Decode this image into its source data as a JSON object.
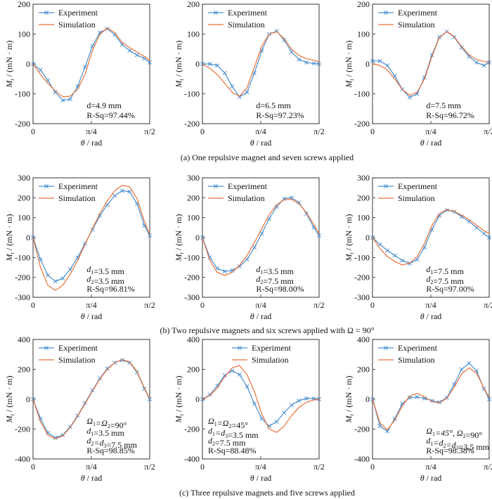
{
  "colors": {
    "experiment": "#4a8fd0",
    "simulation": "#e8703a",
    "axes": "#222222"
  },
  "captions": [
    "(a) One repulsive magnet and seven screws applied",
    "(b) Two repulsive magnets and six screws applied with Ω = 90°",
    "(c) Three repulsive magnets and five screws applied"
  ],
  "chart_data": [
    {
      "type": "line",
      "row": 0,
      "col": 0,
      "xlabel": "θ / rad",
      "ylabel": "Mt / (mN · m)",
      "xlim": [
        0,
        1.5708
      ],
      "ylim": [
        -200,
        200
      ],
      "yticks": [
        -200,
        -100,
        0,
        100,
        200
      ],
      "xticks": [
        "0",
        "π/4",
        "π/2"
      ],
      "legend": [
        "Experiment",
        "Simulation"
      ],
      "legend_position": "top-left",
      "annotation": [
        "d=4.9 mm",
        "R-Sq=97.44%"
      ],
      "annotation_position": "bottom-middle",
      "series": [
        {
          "name": "Experiment",
          "marker": "x",
          "x": [
            0,
            0.1,
            0.2,
            0.3,
            0.4,
            0.5,
            0.6,
            0.7,
            0.8,
            0.9,
            1.0,
            1.1,
            1.2,
            1.3,
            1.4,
            1.5,
            1.5708
          ],
          "y": [
            0,
            -20,
            -55,
            -95,
            -122,
            -118,
            -75,
            -10,
            60,
            105,
            118,
            98,
            65,
            45,
            30,
            18,
            5
          ]
        },
        {
          "name": "Simulation",
          "x": [
            0,
            0.1,
            0.2,
            0.3,
            0.4,
            0.5,
            0.6,
            0.7,
            0.8,
            0.9,
            1.0,
            1.1,
            1.2,
            1.3,
            1.4,
            1.5,
            1.5708
          ],
          "y": [
            0,
            -35,
            -65,
            -90,
            -110,
            -108,
            -85,
            -35,
            45,
            100,
            120,
            105,
            72,
            55,
            40,
            25,
            12
          ]
        }
      ]
    },
    {
      "type": "line",
      "row": 0,
      "col": 1,
      "xlabel": "θ / rad",
      "ylabel": "Mt / (mN · m)",
      "xlim": [
        0,
        1.5708
      ],
      "ylim": [
        -200,
        200
      ],
      "yticks": [
        -200,
        -100,
        0,
        100,
        200
      ],
      "xticks": [
        "0",
        "π/4",
        "π/2"
      ],
      "legend": [
        "Experiment",
        "Simulation"
      ],
      "legend_position": "top-left",
      "annotation": [
        "d=6.5 mm",
        "R-Sq=97.23%"
      ],
      "annotation_position": "bottom-middle",
      "series": [
        {
          "name": "Experiment",
          "marker": "x",
          "x": [
            0,
            0.1,
            0.2,
            0.3,
            0.4,
            0.5,
            0.6,
            0.7,
            0.8,
            0.9,
            1.0,
            1.1,
            1.2,
            1.3,
            1.4,
            1.5,
            1.5708
          ],
          "y": [
            0,
            0,
            -5,
            -30,
            -75,
            -110,
            -95,
            -30,
            45,
            100,
            110,
            80,
            40,
            15,
            5,
            2,
            0
          ]
        },
        {
          "name": "Simulation",
          "x": [
            0,
            0.1,
            0.2,
            0.3,
            0.4,
            0.5,
            0.6,
            0.7,
            0.8,
            0.9,
            1.0,
            1.1,
            1.2,
            1.3,
            1.4,
            1.5,
            1.5708
          ],
          "y": [
            0,
            -15,
            -35,
            -65,
            -95,
            -108,
            -80,
            -10,
            60,
            100,
            108,
            85,
            50,
            28,
            18,
            12,
            8
          ]
        }
      ]
    },
    {
      "type": "line",
      "row": 0,
      "col": 2,
      "xlabel": "θ / rad",
      "ylabel": "Mt / (mN · m)",
      "xlim": [
        0,
        1.5708
      ],
      "ylim": [
        -200,
        200
      ],
      "yticks": [
        -200,
        -100,
        0,
        100,
        200
      ],
      "xticks": [
        "0",
        "π/4",
        "π/2"
      ],
      "legend": [
        "Experiment",
        "Simulation"
      ],
      "legend_position": "top-left",
      "annotation": [
        "d=7.5 mm",
        "R-Sq=96.72%"
      ],
      "annotation_position": "bottom-middle",
      "series": [
        {
          "name": "Experiment",
          "marker": "x",
          "x": [
            0,
            0.1,
            0.2,
            0.3,
            0.4,
            0.5,
            0.6,
            0.7,
            0.8,
            0.9,
            1.0,
            1.1,
            1.2,
            1.3,
            1.4,
            1.5,
            1.5708
          ],
          "y": [
            10,
            10,
            -5,
            -40,
            -85,
            -112,
            -100,
            -45,
            30,
            90,
            108,
            90,
            55,
            25,
            5,
            -5,
            5
          ]
        },
        {
          "name": "Simulation",
          "x": [
            0,
            0.1,
            0.2,
            0.3,
            0.4,
            0.5,
            0.6,
            0.7,
            0.8,
            0.9,
            1.0,
            1.1,
            1.2,
            1.3,
            1.4,
            1.5,
            1.5708
          ],
          "y": [
            0,
            -5,
            -20,
            -50,
            -85,
            -105,
            -95,
            -50,
            25,
            88,
            108,
            92,
            58,
            30,
            15,
            8,
            5
          ]
        }
      ]
    },
    {
      "type": "line",
      "row": 1,
      "col": 0,
      "xlabel": "θ / rad",
      "ylabel": "Mt / (mN · m)",
      "xlim": [
        0,
        1.5708
      ],
      "ylim": [
        -300,
        300
      ],
      "yticks": [
        -300,
        -200,
        -100,
        0,
        100,
        200,
        300
      ],
      "xticks": [
        "0",
        "π/4",
        "π/2"
      ],
      "legend": [
        "Experiment",
        "Simulation"
      ],
      "legend_position": "top-left",
      "annotation": [
        "d1=3.5 mm",
        "d2=3.5 mm",
        "R-Sq=96.81%"
      ],
      "annotation_position": "bottom-middle",
      "series": [
        {
          "name": "Experiment",
          "marker": "x",
          "x": [
            0,
            0.1,
            0.2,
            0.3,
            0.4,
            0.5,
            0.6,
            0.7,
            0.8,
            0.9,
            1.0,
            1.1,
            1.2,
            1.3,
            1.4,
            1.5,
            1.5708
          ],
          "y": [
            0,
            -110,
            -190,
            -220,
            -205,
            -160,
            -100,
            -30,
            40,
            110,
            165,
            210,
            235,
            230,
            170,
            60,
            10
          ]
        },
        {
          "name": "Simulation",
          "x": [
            0,
            0.1,
            0.2,
            0.3,
            0.4,
            0.5,
            0.6,
            0.7,
            0.8,
            0.9,
            1.0,
            1.1,
            1.2,
            1.3,
            1.4,
            1.5,
            1.5708
          ],
          "y": [
            0,
            -150,
            -240,
            -265,
            -240,
            -185,
            -115,
            -35,
            45,
            120,
            185,
            235,
            262,
            255,
            195,
            80,
            15
          ]
        }
      ]
    },
    {
      "type": "line",
      "row": 1,
      "col": 1,
      "xlabel": "θ / rad",
      "ylabel": "Mt / (mN · m)",
      "xlim": [
        0,
        1.5708
      ],
      "ylim": [
        -300,
        300
      ],
      "yticks": [
        -300,
        -200,
        -100,
        0,
        100,
        200,
        300
      ],
      "xticks": [
        "0",
        "π/4",
        "π/2"
      ],
      "legend": [
        "Experiment",
        "Simulation"
      ],
      "legend_position": "top-left",
      "annotation": [
        "d1=3.5 mm",
        "d2=7.5 mm",
        "R-Sq=98.00%"
      ],
      "annotation_position": "bottom-middle",
      "series": [
        {
          "name": "Experiment",
          "marker": "x",
          "x": [
            0,
            0.1,
            0.2,
            0.3,
            0.4,
            0.5,
            0.6,
            0.7,
            0.8,
            0.9,
            1.0,
            1.1,
            1.2,
            1.3,
            1.4,
            1.5,
            1.5708
          ],
          "y": [
            0,
            -100,
            -155,
            -170,
            -165,
            -145,
            -110,
            -50,
            20,
            95,
            155,
            195,
            200,
            175,
            120,
            50,
            10
          ]
        },
        {
          "name": "Simulation",
          "x": [
            0,
            0.1,
            0.2,
            0.3,
            0.4,
            0.5,
            0.6,
            0.7,
            0.8,
            0.9,
            1.0,
            1.1,
            1.2,
            1.3,
            1.4,
            1.5,
            1.5708
          ],
          "y": [
            0,
            -115,
            -175,
            -190,
            -175,
            -140,
            -90,
            -25,
            45,
            115,
            165,
            190,
            192,
            170,
            125,
            65,
            20
          ]
        }
      ]
    },
    {
      "type": "line",
      "row": 1,
      "col": 2,
      "xlabel": "θ / rad",
      "ylabel": "Mt / (mN · m)",
      "xlim": [
        0,
        1.5708
      ],
      "ylim": [
        -300,
        300
      ],
      "yticks": [
        -300,
        -200,
        -100,
        0,
        100,
        200,
        300
      ],
      "xticks": [
        "0",
        "π/4",
        "π/2"
      ],
      "legend": [
        "Experiment",
        "Simulation"
      ],
      "legend_position": "top-left",
      "annotation": [
        "d1=7.5 mm",
        "d2=7.5 mm",
        "R-Sq=97.00%"
      ],
      "annotation_position": "bottom-middle",
      "series": [
        {
          "name": "Experiment",
          "marker": "x",
          "x": [
            0,
            0.1,
            0.2,
            0.3,
            0.4,
            0.5,
            0.6,
            0.7,
            0.8,
            0.9,
            1.0,
            1.1,
            1.2,
            1.3,
            1.4,
            1.5,
            1.5708
          ],
          "y": [
            0,
            -35,
            -65,
            -90,
            -115,
            -130,
            -110,
            -50,
            40,
            110,
            138,
            130,
            105,
            80,
            50,
            20,
            0
          ]
        },
        {
          "name": "Simulation",
          "x": [
            0,
            0.1,
            0.2,
            0.3,
            0.4,
            0.5,
            0.6,
            0.7,
            0.8,
            0.9,
            1.0,
            1.1,
            1.2,
            1.3,
            1.4,
            1.5,
            1.5708
          ],
          "y": [
            0,
            -55,
            -95,
            -120,
            -138,
            -128,
            -95,
            -30,
            60,
            120,
            140,
            132,
            112,
            90,
            62,
            35,
            20
          ]
        }
      ]
    },
    {
      "type": "line",
      "row": 2,
      "col": 0,
      "xlabel": "θ / rad",
      "ylabel": "Mt / (mN · m)",
      "xlim": [
        0,
        1.5708
      ],
      "ylim": [
        -400,
        400
      ],
      "yticks": [
        -400,
        -200,
        0,
        200,
        400
      ],
      "xticks": [
        "0",
        "π/4",
        "π/2"
      ],
      "legend": [
        "Experiment",
        "Simulation"
      ],
      "legend_position": "top-left",
      "annotation": [
        "Ω1=Ω2=90°",
        "d1=3.5 mm",
        "d2=d3=7.5 mm",
        "R-Sq=98.85%"
      ],
      "annotation_position": "bottom-middle",
      "series": [
        {
          "name": "Experiment",
          "marker": "x",
          "x": [
            0,
            0.1,
            0.2,
            0.3,
            0.4,
            0.5,
            0.6,
            0.7,
            0.8,
            0.9,
            1.0,
            1.1,
            1.2,
            1.3,
            1.4,
            1.5,
            1.5708
          ],
          "y": [
            0,
            -130,
            -225,
            -258,
            -240,
            -185,
            -110,
            -25,
            60,
            140,
            205,
            245,
            262,
            245,
            180,
            70,
            0
          ]
        },
        {
          "name": "Simulation",
          "x": [
            0,
            0.1,
            0.2,
            0.3,
            0.4,
            0.5,
            0.6,
            0.7,
            0.8,
            0.9,
            1.0,
            1.1,
            1.2,
            1.3,
            1.4,
            1.5,
            1.5708
          ],
          "y": [
            0,
            -150,
            -240,
            -265,
            -245,
            -190,
            -115,
            -30,
            55,
            135,
            200,
            245,
            265,
            250,
            185,
            75,
            5
          ]
        }
      ]
    },
    {
      "type": "line",
      "row": 2,
      "col": 1,
      "xlabel": "θ / rad",
      "ylabel": "Mt / (mN · m)",
      "xlim": [
        0,
        1.5708
      ],
      "ylim": [
        -400,
        400
      ],
      "yticks": [
        -400,
        -200,
        0,
        200,
        400
      ],
      "xticks": [
        "0",
        "π/4",
        "π/2"
      ],
      "legend": [
        "Experiment",
        "Simulation"
      ],
      "legend_position": "top-right",
      "annotation": [
        "Ω1=Ω2=45°",
        "d1=d3=3.5 mm",
        "d2=7.5 mm",
        "R-Sq=88.48%"
      ],
      "annotation_position": "bottom-left",
      "series": [
        {
          "name": "Experiment",
          "marker": "x",
          "x": [
            0,
            0.1,
            0.2,
            0.3,
            0.4,
            0.5,
            0.6,
            0.7,
            0.8,
            0.9,
            1.0,
            1.1,
            1.2,
            1.3,
            1.4,
            1.5,
            1.5708
          ],
          "y": [
            0,
            30,
            90,
            160,
            190,
            165,
            85,
            -30,
            -130,
            -180,
            -150,
            -90,
            -40,
            -10,
            5,
            5,
            0
          ]
        },
        {
          "name": "Simulation",
          "x": [
            0,
            0.1,
            0.2,
            0.3,
            0.4,
            0.5,
            0.6,
            0.7,
            0.8,
            0.9,
            1.0,
            1.1,
            1.2,
            1.3,
            1.4,
            1.5,
            1.5708
          ],
          "y": [
            0,
            25,
            75,
            150,
            210,
            225,
            165,
            50,
            -100,
            -200,
            -222,
            -180,
            -110,
            -55,
            -20,
            -5,
            0
          ]
        }
      ]
    },
    {
      "type": "line",
      "row": 2,
      "col": 2,
      "xlabel": "θ / rad",
      "ylabel": "Mt / (mN · m)",
      "xlim": [
        0,
        1.5708
      ],
      "ylim": [
        -400,
        400
      ],
      "yticks": [
        -400,
        -200,
        0,
        200,
        400
      ],
      "xticks": [
        "0",
        "π/4",
        "π/2"
      ],
      "legend": [
        "Experiment",
        "Simulation"
      ],
      "legend_position": "top-left",
      "annotation": [
        "Ω1=45°, Ω2=90°",
        "d1=d2=d3=3.5 mm",
        "R-Sq=98.38%"
      ],
      "annotation_position": "bottom-middle",
      "series": [
        {
          "name": "Experiment",
          "marker": "x",
          "x": [
            0,
            0.1,
            0.2,
            0.3,
            0.4,
            0.5,
            0.6,
            0.7,
            0.8,
            0.9,
            1.0,
            1.1,
            1.2,
            1.3,
            1.4,
            1.5,
            1.5708
          ],
          "y": [
            0,
            -180,
            -215,
            -130,
            -30,
            10,
            15,
            5,
            -10,
            -20,
            10,
            100,
            200,
            240,
            190,
            70,
            0
          ]
        },
        {
          "name": "Simulation",
          "x": [
            0,
            0.1,
            0.2,
            0.3,
            0.4,
            0.5,
            0.6,
            0.7,
            0.8,
            0.9,
            1.0,
            1.1,
            1.2,
            1.3,
            1.4,
            1.5,
            1.5708
          ],
          "y": [
            0,
            -160,
            -205,
            -140,
            -45,
            20,
            40,
            15,
            -15,
            -25,
            5,
            80,
            170,
            210,
            175,
            75,
            10
          ]
        }
      ]
    }
  ]
}
